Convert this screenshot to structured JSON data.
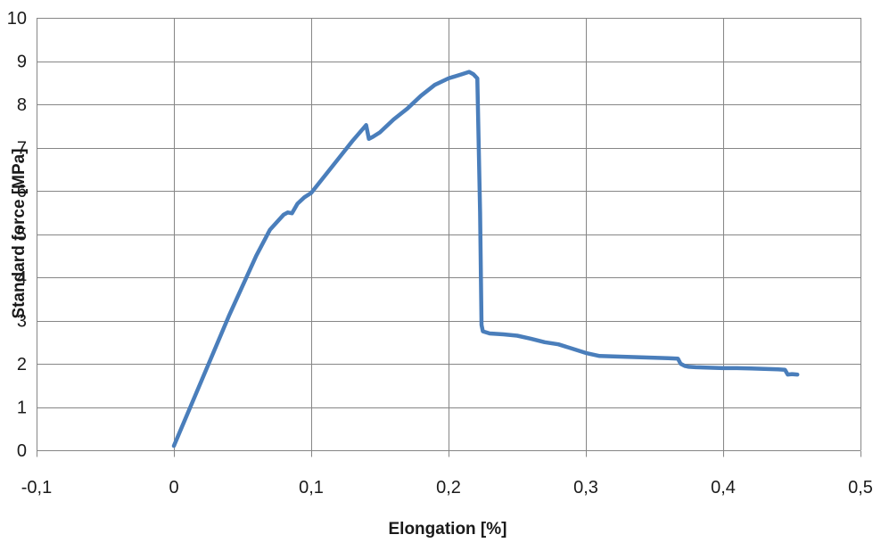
{
  "chart_data": {
    "type": "line",
    "title": "",
    "xlabel": "Elongation [%]",
    "ylabel": "Standard force [MPa]",
    "xlim": [
      -0.1,
      0.5
    ],
    "ylim": [
      0,
      10
    ],
    "xticks": [
      -0.1,
      0,
      0.1,
      0.2,
      0.3,
      0.4,
      0.5
    ],
    "xtick_labels": [
      "-0,1",
      "0",
      "0,1",
      "0,2",
      "0,3",
      "0,4",
      "0,5"
    ],
    "yticks": [
      0,
      1,
      2,
      3,
      4,
      5,
      6,
      7,
      8,
      9,
      10
    ],
    "ytick_labels": [
      "0",
      "1",
      "2",
      "3",
      "4",
      "5",
      "6",
      "7",
      "8",
      "9",
      "10"
    ],
    "grid": true,
    "legend": "none",
    "colors": {
      "line": "#4a7ebb",
      "grid": "#868686",
      "axis": "#868686"
    },
    "series": [
      {
        "x": [
          0.0,
          0.01,
          0.02,
          0.03,
          0.04,
          0.05,
          0.06,
          0.07,
          0.08,
          0.083,
          0.086,
          0.09,
          0.095,
          0.1,
          0.11,
          0.12,
          0.13,
          0.14,
          0.142,
          0.145,
          0.15,
          0.16,
          0.17,
          0.18,
          0.19,
          0.2,
          0.21,
          0.215,
          0.218,
          0.221,
          0.223,
          0.224,
          0.225,
          0.23,
          0.24,
          0.25,
          0.26,
          0.27,
          0.28,
          0.29,
          0.3,
          0.31,
          0.32,
          0.33,
          0.34,
          0.35,
          0.36,
          0.367,
          0.369,
          0.372,
          0.375,
          0.38,
          0.39,
          0.4,
          0.41,
          0.42,
          0.43,
          0.44,
          0.445,
          0.447,
          0.45,
          0.454
        ],
        "y": [
          0.1,
          0.85,
          1.6,
          2.35,
          3.1,
          3.8,
          4.5,
          5.1,
          5.45,
          5.5,
          5.48,
          5.7,
          5.85,
          5.95,
          6.35,
          6.75,
          7.15,
          7.52,
          7.2,
          7.25,
          7.35,
          7.65,
          7.9,
          8.2,
          8.45,
          8.6,
          8.7,
          8.75,
          8.7,
          8.6,
          5.5,
          2.9,
          2.75,
          2.7,
          2.68,
          2.65,
          2.58,
          2.5,
          2.45,
          2.35,
          2.25,
          2.18,
          2.17,
          2.16,
          2.15,
          2.14,
          2.13,
          2.12,
          2.0,
          1.95,
          1.93,
          1.92,
          1.91,
          1.9,
          1.9,
          1.89,
          1.88,
          1.87,
          1.86,
          1.75,
          1.76,
          1.75
        ]
      }
    ]
  }
}
